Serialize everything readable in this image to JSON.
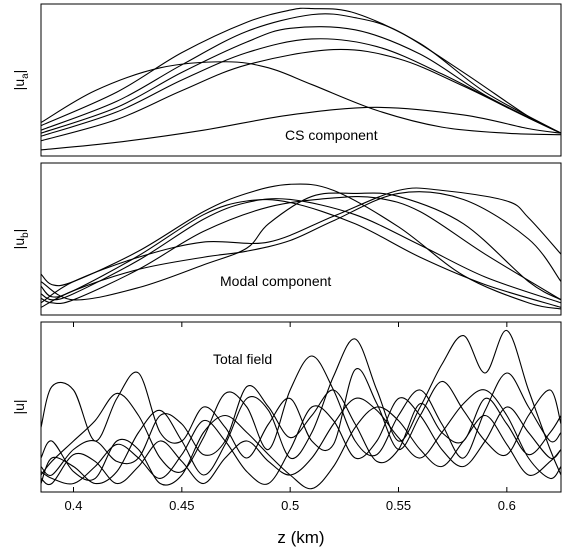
{
  "chart_data": [
    {
      "type": "line",
      "panel": "top",
      "ylabel_main": "|u",
      "ylabel_sub": "a",
      "ylabel_tail": "|",
      "annotation": "CS component",
      "xlim": [
        0.385,
        0.625
      ],
      "ylim": [
        0,
        1
      ],
      "series": [
        {
          "x": [
            0.385,
            0.42,
            0.45,
            0.48,
            0.5,
            0.51,
            0.53,
            0.56,
            0.59,
            0.625
          ],
          "y": [
            0.2,
            0.42,
            0.68,
            0.88,
            0.96,
            0.97,
            0.94,
            0.74,
            0.42,
            0.15
          ]
        },
        {
          "x": [
            0.385,
            0.42,
            0.45,
            0.48,
            0.51,
            0.53,
            0.55,
            0.58,
            0.61,
            0.625
          ],
          "y": [
            0.17,
            0.36,
            0.6,
            0.82,
            0.93,
            0.91,
            0.82,
            0.55,
            0.26,
            0.15
          ]
        },
        {
          "x": [
            0.385,
            0.42,
            0.45,
            0.48,
            0.5,
            0.53,
            0.56,
            0.59,
            0.625
          ],
          "y": [
            0.15,
            0.32,
            0.55,
            0.75,
            0.84,
            0.83,
            0.67,
            0.4,
            0.15
          ]
        },
        {
          "x": [
            0.385,
            0.42,
            0.45,
            0.48,
            0.51,
            0.54,
            0.57,
            0.6,
            0.625
          ],
          "y": [
            0.13,
            0.29,
            0.5,
            0.68,
            0.77,
            0.72,
            0.54,
            0.32,
            0.15
          ]
        },
        {
          "x": [
            0.385,
            0.42,
            0.45,
            0.48,
            0.52,
            0.55,
            0.58,
            0.61,
            0.625
          ],
          "y": [
            0.1,
            0.24,
            0.43,
            0.6,
            0.7,
            0.64,
            0.46,
            0.25,
            0.15
          ]
        },
        {
          "x": [
            0.385,
            0.41,
            0.44,
            0.47,
            0.49,
            0.51,
            0.54,
            0.57,
            0.6,
            0.625
          ],
          "y": [
            0.22,
            0.43,
            0.58,
            0.62,
            0.58,
            0.47,
            0.3,
            0.19,
            0.15,
            0.14
          ]
        },
        {
          "x": [
            0.385,
            0.42,
            0.46,
            0.5,
            0.54,
            0.58,
            0.61,
            0.625
          ],
          "y": [
            0.04,
            0.09,
            0.17,
            0.27,
            0.32,
            0.27,
            0.18,
            0.15
          ]
        }
      ]
    },
    {
      "type": "line",
      "panel": "middle",
      "ylabel_main": "|u",
      "ylabel_sub": "b",
      "ylabel_tail": "|",
      "annotation": "Modal component",
      "xlim": [
        0.385,
        0.625
      ],
      "ylim": [
        0,
        1
      ],
      "series": [
        {
          "x": [
            0.385,
            0.39,
            0.4,
            0.43,
            0.46,
            0.48,
            0.5,
            0.52,
            0.55,
            0.58,
            0.61,
            0.625
          ],
          "y": [
            0.27,
            0.2,
            0.22,
            0.42,
            0.68,
            0.8,
            0.86,
            0.82,
            0.58,
            0.26,
            0.08,
            0.04
          ]
        },
        {
          "x": [
            0.385,
            0.39,
            0.4,
            0.43,
            0.46,
            0.48,
            0.5,
            0.53,
            0.56,
            0.59,
            0.625
          ],
          "y": [
            0.19,
            0.12,
            0.16,
            0.39,
            0.66,
            0.75,
            0.74,
            0.6,
            0.38,
            0.2,
            0.05
          ]
        },
        {
          "x": [
            0.385,
            0.39,
            0.4,
            0.43,
            0.46,
            0.48,
            0.5,
            0.53,
            0.56,
            0.59,
            0.625
          ],
          "y": [
            0.14,
            0.1,
            0.14,
            0.36,
            0.63,
            0.74,
            0.76,
            0.66,
            0.46,
            0.25,
            0.08
          ]
        },
        {
          "x": [
            0.385,
            0.39,
            0.4,
            0.43,
            0.46,
            0.49,
            0.52,
            0.54,
            0.56,
            0.59,
            0.625
          ],
          "y": [
            0.11,
            0.08,
            0.1,
            0.3,
            0.55,
            0.71,
            0.77,
            0.77,
            0.68,
            0.4,
            0.1
          ]
        },
        {
          "x": [
            0.385,
            0.4,
            0.43,
            0.46,
            0.48,
            0.49,
            0.51,
            0.53,
            0.55,
            0.58,
            0.61,
            0.625
          ],
          "y": [
            0.22,
            0.1,
            0.18,
            0.33,
            0.44,
            0.6,
            0.78,
            0.8,
            0.78,
            0.6,
            0.22,
            0.1
          ]
        },
        {
          "x": [
            0.385,
            0.4,
            0.43,
            0.46,
            0.48,
            0.5,
            0.52,
            0.55,
            0.58,
            0.61,
            0.625
          ],
          "y": [
            0.05,
            0.16,
            0.3,
            0.38,
            0.42,
            0.49,
            0.62,
            0.8,
            0.76,
            0.5,
            0.22
          ]
        },
        {
          "x": [
            0.385,
            0.4,
            0.43,
            0.46,
            0.49,
            0.52,
            0.55,
            0.57,
            0.6,
            0.61,
            0.625
          ],
          "y": [
            0.08,
            0.22,
            0.38,
            0.48,
            0.48,
            0.65,
            0.82,
            0.82,
            0.75,
            0.64,
            0.4
          ]
        }
      ]
    },
    {
      "type": "line",
      "panel": "bottom",
      "ylabel_main": "|u|",
      "annotation": "Total field",
      "xlabel": "z (km)",
      "xticks": [
        0.4,
        0.45,
        0.5,
        0.55,
        0.6
      ],
      "xtick_labels": [
        "0.4",
        "0.45",
        "0.5",
        "0.55",
        "0.6"
      ],
      "xlim": [
        0.385,
        0.625
      ],
      "ylim": [
        0,
        1
      ],
      "series": [
        {
          "x": [
            0.385,
            0.39,
            0.4,
            0.41,
            0.42,
            0.43,
            0.44,
            0.45,
            0.46,
            0.47,
            0.48,
            0.49,
            0.5,
            0.51,
            0.52,
            0.53,
            0.54,
            0.55,
            0.56,
            0.57,
            0.58,
            0.59,
            0.6,
            0.61,
            0.62,
            0.625
          ],
          "y": [
            0.38,
            0.62,
            0.6,
            0.3,
            0.55,
            0.7,
            0.35,
            0.3,
            0.5,
            0.38,
            0.2,
            0.4,
            0.55,
            0.3,
            0.28,
            0.72,
            0.52,
            0.25,
            0.45,
            0.65,
            0.48,
            0.3,
            0.22,
            0.45,
            0.6,
            0.4
          ]
        },
        {
          "x": [
            0.385,
            0.39,
            0.4,
            0.41,
            0.42,
            0.43,
            0.44,
            0.45,
            0.46,
            0.47,
            0.48,
            0.49,
            0.5,
            0.51,
            0.52,
            0.53,
            0.54,
            0.55,
            0.56,
            0.57,
            0.58,
            0.59,
            0.6,
            0.61,
            0.62,
            0.625
          ],
          "y": [
            0.1,
            0.18,
            0.3,
            0.42,
            0.58,
            0.45,
            0.2,
            0.12,
            0.32,
            0.58,
            0.5,
            0.25,
            0.6,
            0.8,
            0.6,
            0.3,
            0.22,
            0.45,
            0.6,
            0.4,
            0.2,
            0.48,
            0.7,
            0.5,
            0.3,
            0.35
          ]
        },
        {
          "x": [
            0.385,
            0.39,
            0.4,
            0.41,
            0.42,
            0.43,
            0.44,
            0.45,
            0.46,
            0.47,
            0.48,
            0.49,
            0.5,
            0.51,
            0.52,
            0.53,
            0.54,
            0.55,
            0.56,
            0.57,
            0.58,
            0.59,
            0.6,
            0.61,
            0.62,
            0.625
          ],
          "y": [
            0.05,
            0.2,
            0.15,
            0.05,
            0.12,
            0.35,
            0.48,
            0.3,
            0.1,
            0.28,
            0.55,
            0.48,
            0.2,
            0.35,
            0.68,
            0.9,
            0.6,
            0.3,
            0.5,
            0.75,
            0.92,
            0.7,
            0.95,
            0.6,
            0.25,
            0.1
          ]
        },
        {
          "x": [
            0.385,
            0.39,
            0.4,
            0.41,
            0.42,
            0.43,
            0.44,
            0.45,
            0.46,
            0.47,
            0.48,
            0.49,
            0.5,
            0.51,
            0.52,
            0.53,
            0.54,
            0.55,
            0.56,
            0.57,
            0.58,
            0.59,
            0.6,
            0.61,
            0.62,
            0.625
          ],
          "y": [
            0.15,
            0.1,
            0.25,
            0.3,
            0.18,
            0.2,
            0.45,
            0.4,
            0.22,
            0.3,
            0.62,
            0.5,
            0.32,
            0.45,
            0.6,
            0.4,
            0.18,
            0.25,
            0.52,
            0.35,
            0.3,
            0.55,
            0.4,
            0.22,
            0.35,
            0.45
          ]
        },
        {
          "x": [
            0.385,
            0.39,
            0.4,
            0.41,
            0.42,
            0.43,
            0.44,
            0.45,
            0.46,
            0.47,
            0.48,
            0.49,
            0.5,
            0.51,
            0.52,
            0.53,
            0.54,
            0.55,
            0.56,
            0.57,
            0.58,
            0.59,
            0.6,
            0.61,
            0.62,
            0.625
          ],
          "y": [
            0.08,
            0.05,
            0.22,
            0.18,
            0.05,
            0.15,
            0.3,
            0.18,
            0.05,
            0.2,
            0.3,
            0.18,
            0.1,
            0.2,
            0.4,
            0.55,
            0.48,
            0.32,
            0.2,
            0.35,
            0.52,
            0.6,
            0.45,
            0.2,
            0.08,
            0.15
          ]
        },
        {
          "x": [
            0.385,
            0.39,
            0.4,
            0.41,
            0.42,
            0.43,
            0.44,
            0.45,
            0.46,
            0.47,
            0.48,
            0.49,
            0.5,
            0.51,
            0.52,
            0.53,
            0.54,
            0.55,
            0.56,
            0.57,
            0.58,
            0.59,
            0.6,
            0.61,
            0.62,
            0.625
          ],
          "y": [
            0.12,
            0.08,
            0.05,
            0.15,
            0.28,
            0.2,
            0.08,
            0.22,
            0.42,
            0.3,
            0.12,
            0.05,
            0.25,
            0.5,
            0.42,
            0.2,
            0.3,
            0.55,
            0.45,
            0.25,
            0.15,
            0.3,
            0.5,
            0.35,
            0.2,
            0.25
          ]
        },
        {
          "x": [
            0.385,
            0.39,
            0.4,
            0.41,
            0.42,
            0.43,
            0.44,
            0.45,
            0.46,
            0.47,
            0.48,
            0.49,
            0.5,
            0.51,
            0.52,
            0.53,
            0.54,
            0.55,
            0.56,
            0.57,
            0.58,
            0.59,
            0.6,
            0.61,
            0.62,
            0.625
          ],
          "y": [
            0.2,
            0.3,
            0.12,
            0.08,
            0.3,
            0.25,
            0.05,
            0.1,
            0.35,
            0.45,
            0.35,
            0.22,
            0.1,
            0.02,
            0.15,
            0.38,
            0.5,
            0.42,
            0.25,
            0.15,
            0.3,
            0.45,
            0.28,
            0.1,
            0.18,
            0.25
          ]
        }
      ]
    }
  ]
}
